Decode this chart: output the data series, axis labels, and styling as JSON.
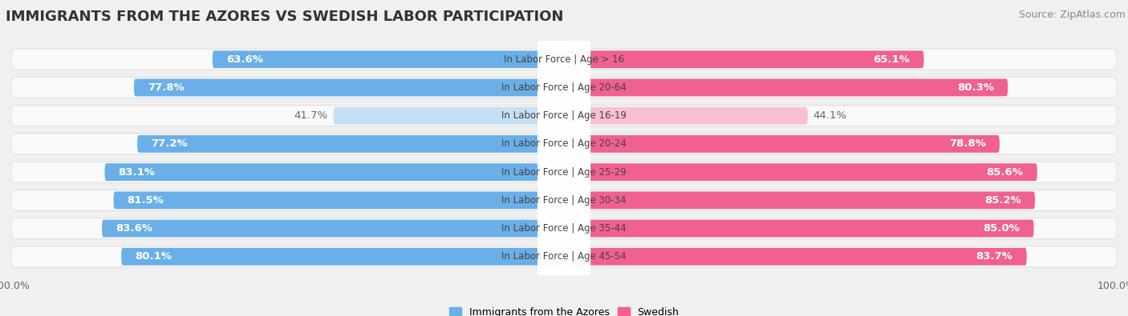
{
  "title": "IMMIGRANTS FROM THE AZORES VS SWEDISH LABOR PARTICIPATION",
  "source": "Source: ZipAtlas.com",
  "categories": [
    "In Labor Force | Age > 16",
    "In Labor Force | Age 20-64",
    "In Labor Force | Age 16-19",
    "In Labor Force | Age 20-24",
    "In Labor Force | Age 25-29",
    "In Labor Force | Age 30-34",
    "In Labor Force | Age 35-44",
    "In Labor Force | Age 45-54"
  ],
  "azores_values": [
    63.6,
    77.8,
    41.7,
    77.2,
    83.1,
    81.5,
    83.6,
    80.1
  ],
  "swedish_values": [
    65.1,
    80.3,
    44.1,
    78.8,
    85.6,
    85.2,
    85.0,
    83.7
  ],
  "azores_color_full": "#6aafe8",
  "azores_color_light": "#c5dff5",
  "swedish_color_full": "#f06090",
  "swedish_color_light": "#f9c0d4",
  "bg_color": "#f0f0f0",
  "row_bg": "#fafafa",
  "row_border": "#e0e0e0",
  "label_fontsize": 9.5,
  "cat_fontsize": 8.5,
  "title_fontsize": 13,
  "source_fontsize": 9,
  "legend_fontsize": 9,
  "max_val": 100.0,
  "legend_azores": "Immigrants from the Azores",
  "legend_swedish": "Swedish",
  "tick_fontsize": 9
}
